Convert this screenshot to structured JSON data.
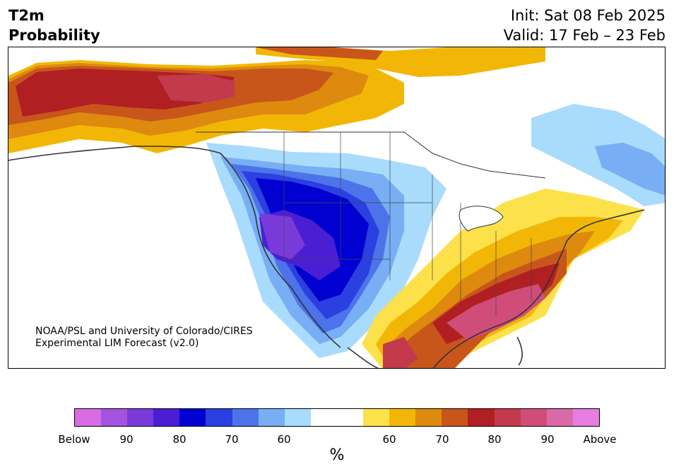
{
  "header": {
    "variable": "T2m",
    "product": "Probability",
    "init": "Init: Sat 08 Feb 2025",
    "valid": "Valid: 17 Feb – 23 Feb"
  },
  "map": {
    "region": "North America",
    "credit_line1": "NOAA/PSL and University of Colorado/CIRES",
    "credit_line2": "Experimental LIM Forecast (v2.0)"
  },
  "colorbar": {
    "unit": "%",
    "colors": [
      "#d86be4",
      "#a552e0",
      "#7a3ad9",
      "#4a1fd4",
      "#0000d0",
      "#2a40e0",
      "#4d73ea",
      "#78aef4",
      "#a9dbfc",
      "#ffffff",
      "#ffffff",
      "#fde14a",
      "#f2b706",
      "#dd8a0f",
      "#c8561a",
      "#b01f22",
      "#c23a4c",
      "#d04d7a",
      "#d96aa7",
      "#e57ee0"
    ],
    "tick_labels": [
      "Below",
      "90",
      "80",
      "70",
      "60",
      "60",
      "70",
      "80",
      "90",
      "Above"
    ]
  },
  "colors": {
    "cold_extreme": "#0000d0",
    "warm_extreme": "#b01f22",
    "coastline": "#333333"
  }
}
